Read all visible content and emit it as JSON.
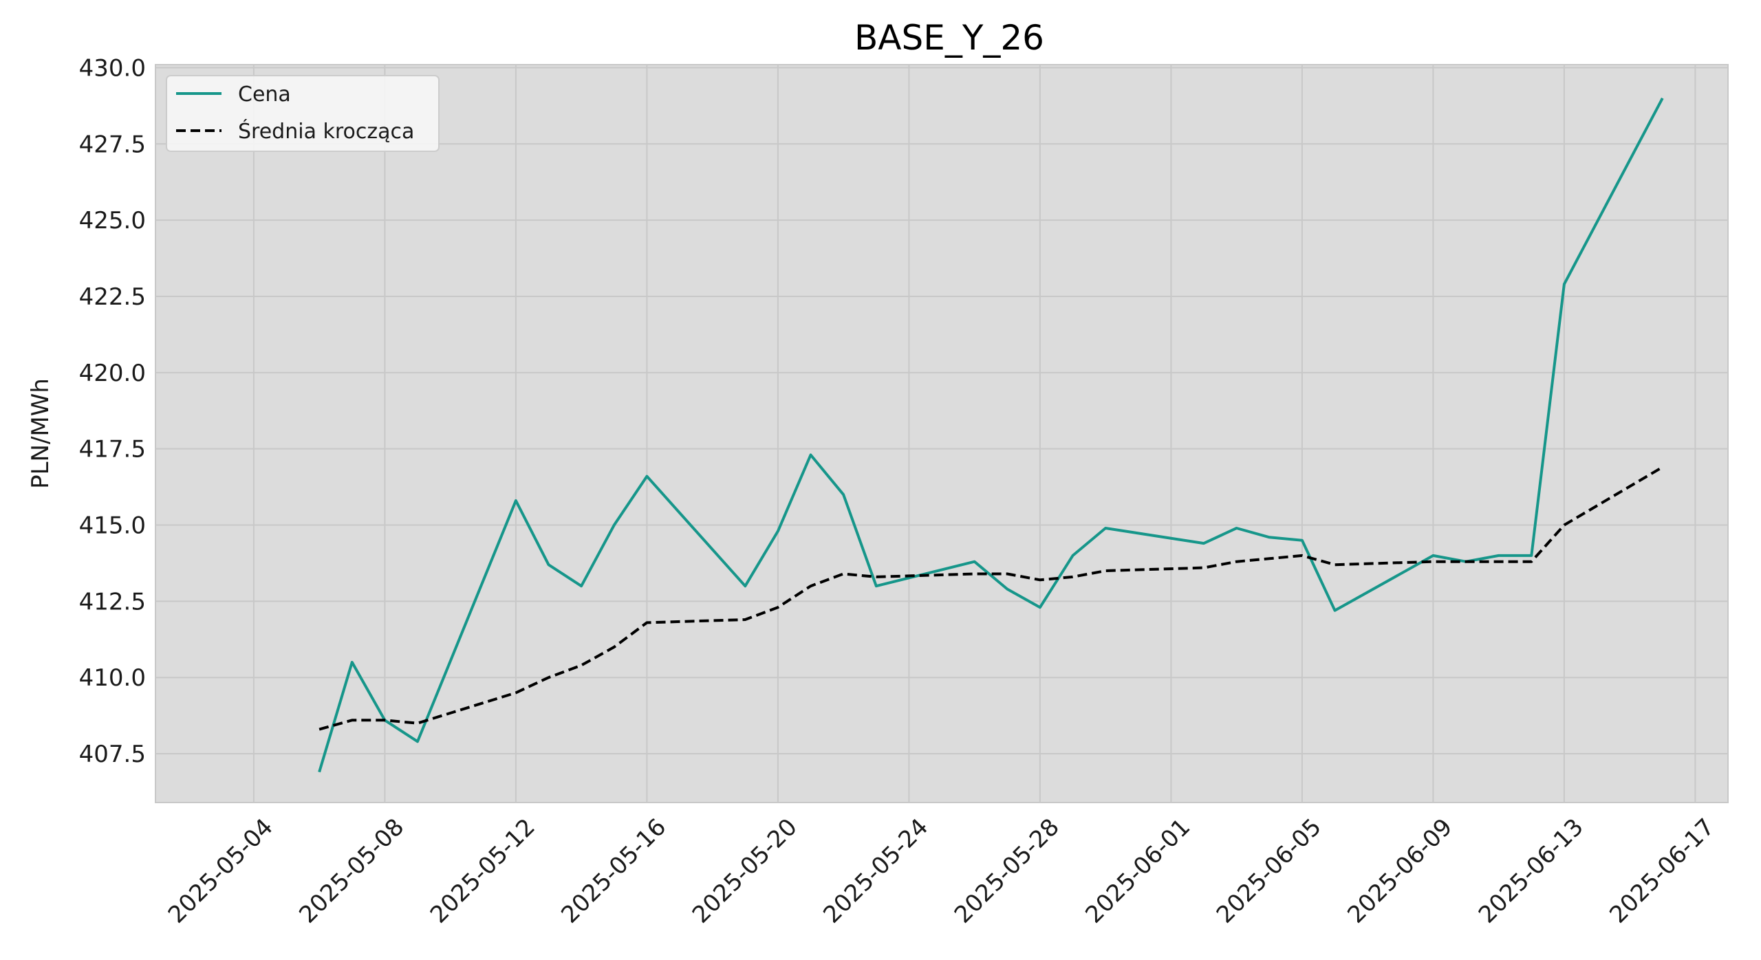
{
  "chart_data": {
    "type": "line",
    "title": "BASE_Y_26",
    "xlabel": "",
    "ylabel": "PLN/MWh",
    "xlim": [
      "2025-05-01",
      "2025-06-18"
    ],
    "ylim": [
      405.9,
      430.1
    ],
    "x_ticks": [
      "2025-05-04",
      "2025-05-08",
      "2025-05-12",
      "2025-05-16",
      "2025-05-20",
      "2025-05-24",
      "2025-05-28",
      "2025-06-01",
      "2025-06-05",
      "2025-06-09",
      "2025-06-13",
      "2025-06-17"
    ],
    "y_ticks": [
      "407.5",
      "410.0",
      "412.5",
      "415.0",
      "417.5",
      "420.0",
      "422.5",
      "425.0",
      "427.5",
      "430.0"
    ],
    "grid": true,
    "legend_position": "top-left",
    "colors": {
      "plot_background": "#dcdcdc",
      "grid": "#c8c8c8",
      "cena": "#16968a",
      "srednia": "#000000"
    },
    "x": [
      "2025-05-06",
      "2025-05-07",
      "2025-05-08",
      "2025-05-09",
      "2025-05-12",
      "2025-05-13",
      "2025-05-14",
      "2025-05-15",
      "2025-05-16",
      "2025-05-19",
      "2025-05-20",
      "2025-05-21",
      "2025-05-22",
      "2025-05-23",
      "2025-05-26",
      "2025-05-27",
      "2025-05-28",
      "2025-05-29",
      "2025-05-30",
      "2025-06-02",
      "2025-06-03",
      "2025-06-04",
      "2025-06-05",
      "2025-06-06",
      "2025-06-09",
      "2025-06-10",
      "2025-06-11",
      "2025-06-12",
      "2025-06-13",
      "2025-06-16"
    ],
    "series": [
      {
        "name": "Cena",
        "style": "solid",
        "values": [
          406.9,
          410.5,
          408.6,
          407.9,
          415.8,
          413.7,
          413.0,
          415.0,
          416.6,
          413.0,
          414.8,
          417.3,
          416.0,
          413.0,
          413.8,
          412.9,
          412.3,
          414.0,
          414.9,
          414.4,
          414.9,
          414.6,
          414.5,
          412.2,
          414.0,
          413.8,
          414.0,
          414.0,
          422.9,
          429.0
        ]
      },
      {
        "name": "Średnia krocząca",
        "style": "dashed",
        "values": [
          408.3,
          408.6,
          408.6,
          408.5,
          409.5,
          410.0,
          410.4,
          411.0,
          411.8,
          411.9,
          412.3,
          413.0,
          413.4,
          413.3,
          413.4,
          413.4,
          413.2,
          413.3,
          413.5,
          413.6,
          413.8,
          413.9,
          414.0,
          413.7,
          413.8,
          413.8,
          413.8,
          413.8,
          415.0,
          416.9
        ]
      }
    ]
  }
}
